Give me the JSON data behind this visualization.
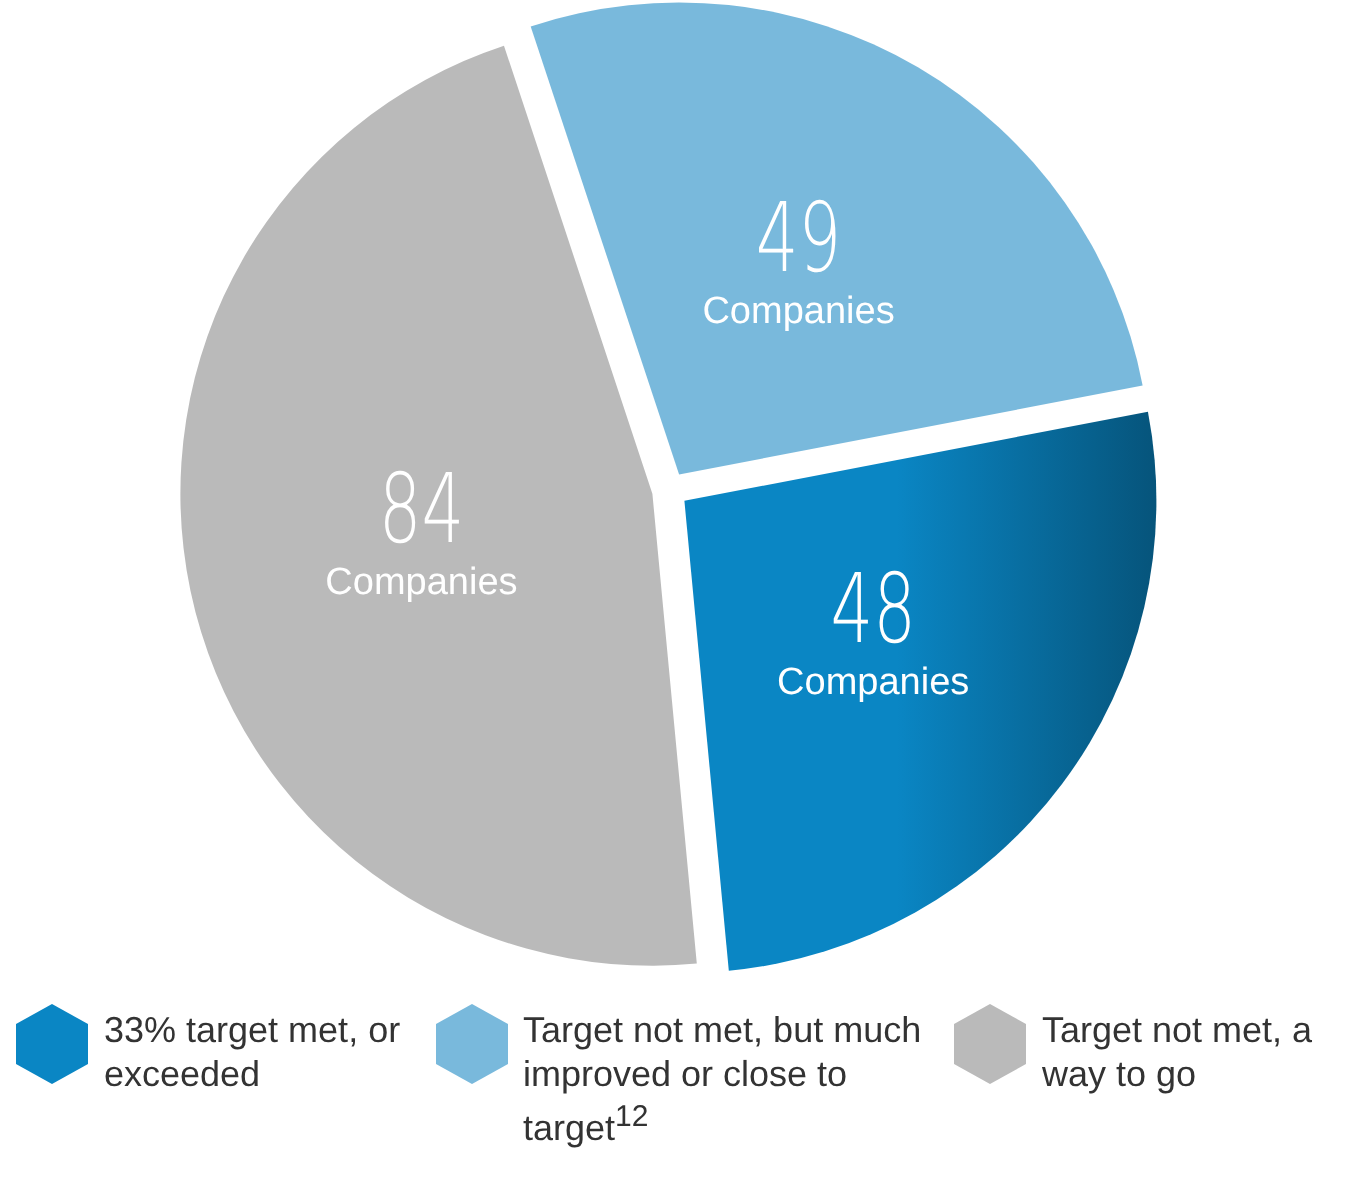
{
  "chart_data": {
    "type": "pie",
    "categories": [
      "33% target met, or exceeded",
      "Target not met, but much improved or close to target$^{12}$",
      "Target not met, a way to go"
    ],
    "values": [
      48,
      49,
      84
    ],
    "colors": [
      "#0a86c4",
      "#79b9dc",
      "#bababa"
    ],
    "value_labels": [
      "48 Companies",
      "49 Companies",
      "84 Companies"
    ],
    "legend": "bottom"
  }
}
